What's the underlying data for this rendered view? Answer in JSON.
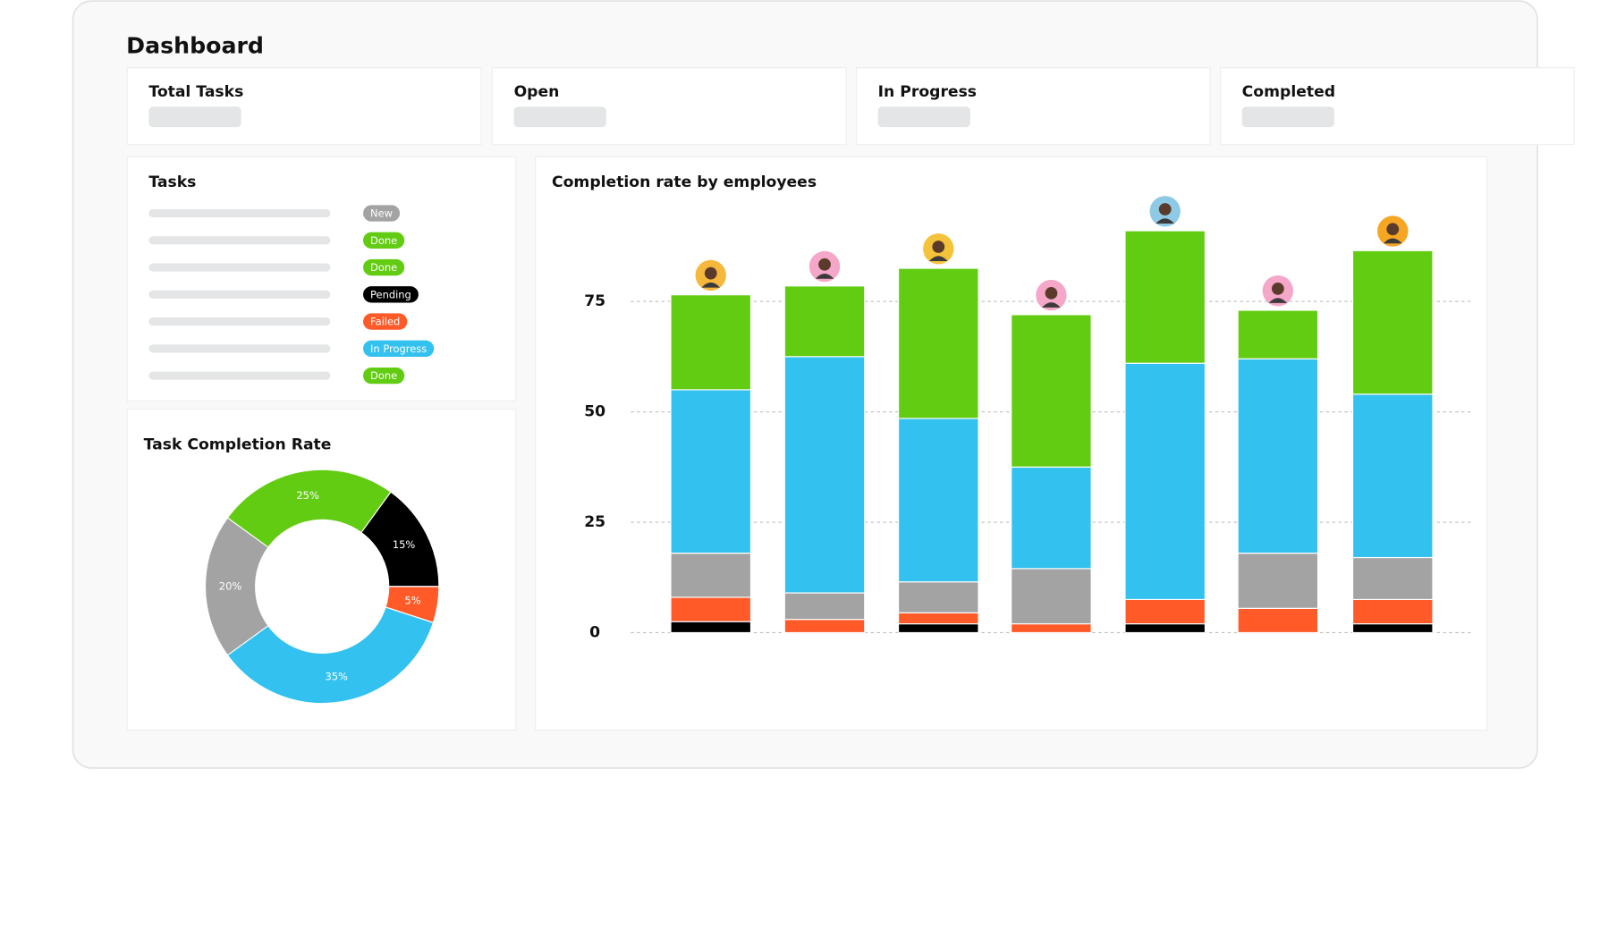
{
  "title": "Dashboard",
  "cards": [
    "Total Tasks",
    "Open",
    "In Progress",
    "Completed"
  ],
  "tasks": {
    "title": "Tasks",
    "items": [
      {
        "status": "New",
        "color": "#a3a3a3"
      },
      {
        "status": "Done",
        "color": "#62cc13"
      },
      {
        "status": "Done",
        "color": "#62cc13"
      },
      {
        "status": "Pending",
        "color": "#000000"
      },
      {
        "status": "Failed",
        "color": "#ff5a28"
      },
      {
        "status": "In Progress",
        "color": "#33c1ef"
      },
      {
        "status": "Done",
        "color": "#62cc13"
      }
    ]
  },
  "chart_data": [
    {
      "type": "donut",
      "title": "Task Completion Rate",
      "values": [
        25,
        15,
        5,
        35,
        20
      ],
      "value_labels": [
        "25%",
        "15%",
        "5%",
        "35%",
        "20%"
      ],
      "colors": [
        "#62cc13",
        "#000000",
        "#ff5a28",
        "#33c1ef",
        "#a3a3a3"
      ]
    },
    {
      "type": "stacked-bar",
      "title": "Completion rate by employees",
      "categories": [
        null,
        null,
        null,
        null,
        null,
        null,
        null
      ],
      "series": [
        {
          "color": "#000000",
          "values": [
            2.5,
            0,
            2,
            0,
            2,
            0,
            2
          ]
        },
        {
          "color": "#ff5a28",
          "values": [
            5.5,
            3,
            2.5,
            2,
            5.5,
            5.5,
            5.5
          ]
        },
        {
          "color": "#a3a3a3",
          "values": [
            10,
            6,
            7,
            12.5,
            0,
            12.5,
            9.5
          ]
        },
        {
          "color": "#33c1ef",
          "values": [
            37,
            53.5,
            37,
            23,
            53.5,
            44,
            37
          ]
        },
        {
          "color": "#62cc13",
          "values": [
            21.5,
            16,
            34,
            34.5,
            30,
            11,
            32.5
          ]
        }
      ],
      "ylim": [
        0,
        95
      ],
      "yticks": [
        0,
        25,
        50,
        75
      ],
      "grid": true
    }
  ]
}
